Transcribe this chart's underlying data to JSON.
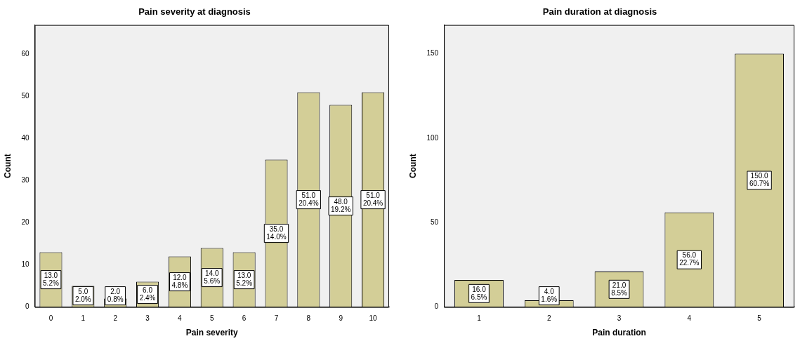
{
  "chart_data": [
    {
      "type": "bar",
      "title": "Pain severity at diagnosis",
      "xlabel": "Pain severity",
      "ylabel": "Count",
      "categories": [
        "0",
        "1",
        "2",
        "3",
        "4",
        "5",
        "6",
        "7",
        "8",
        "9",
        "10"
      ],
      "values": [
        13,
        5,
        2,
        6,
        12,
        14,
        13,
        35,
        51,
        48,
        51
      ],
      "value_labels": [
        "13.0\n5.2%",
        "5.0\n2.0%",
        "2.0\n0.8%",
        "6.0\n2.4%",
        "12.0\n4.8%",
        "14.0\n5.6%",
        "13.0\n5.2%",
        "35.0\n14.0%",
        "51.0\n20.4%",
        "48.0\n19.2%",
        "51.0\n20.4%"
      ],
      "color": "#d3ce97",
      "ylim": [
        0,
        67
      ],
      "yticks": [
        0,
        10,
        20,
        30,
        40,
        50,
        60
      ],
      "grid": false,
      "legend": false
    },
    {
      "type": "bar",
      "title": "Pain duration at diagnosis",
      "xlabel": "Pain duration",
      "ylabel": "Count",
      "categories": [
        "1",
        "2",
        "3",
        "4",
        "5"
      ],
      "values": [
        16,
        4,
        21,
        56,
        150
      ],
      "value_labels": [
        "16.0\n6.5%",
        "4.0\n1.6%",
        "21.0\n8.5%",
        "56.0\n22.7%",
        "150.0\n60.7%"
      ],
      "color": "#d3ce97",
      "ylim": [
        0,
        167
      ],
      "yticks": [
        0,
        50,
        100,
        150
      ],
      "grid": false,
      "legend": false
    }
  ]
}
